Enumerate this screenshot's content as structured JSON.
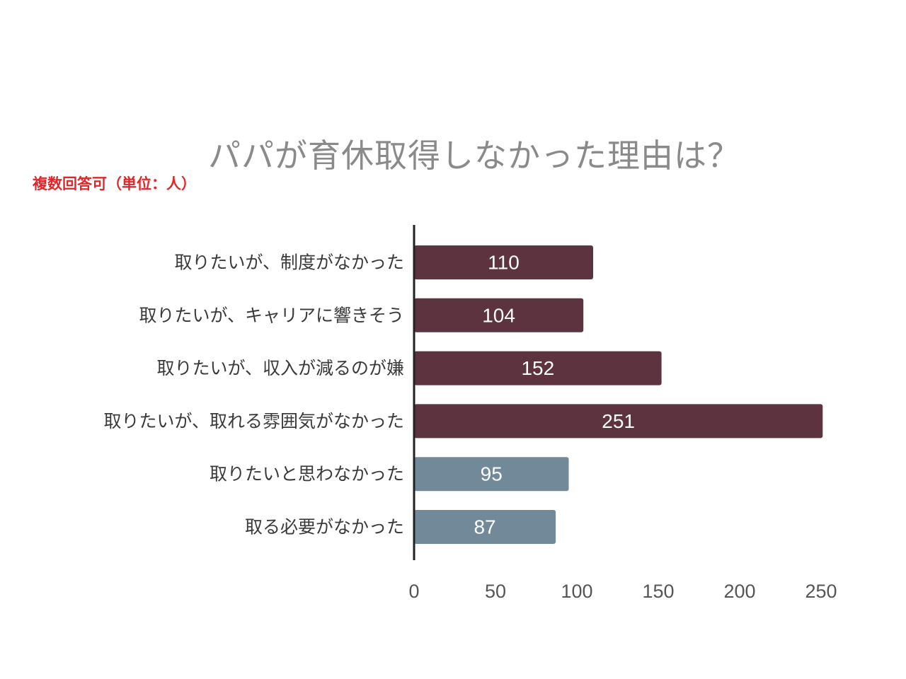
{
  "chart_data": {
    "type": "bar",
    "orientation": "horizontal",
    "title": "パパが育休取得しなかった理由は？",
    "subtitle": "複数回答可（単位：人）",
    "categories": [
      "取りたいが、制度がなかった",
      "取りたいが、キャリアに響きそう",
      "取りたいが、収入が減るのが嫌",
      "取りたいが、取れる雰囲気がなかった",
      "取りたいと思わなかった",
      "取る必要がなかった"
    ],
    "values": [
      110,
      104,
      152,
      251,
      95,
      87
    ],
    "bar_colors": [
      "#5e3340",
      "#5e3340",
      "#5e3340",
      "#5e3340",
      "#72899a",
      "#72899a"
    ],
    "xlim": [
      0,
      250
    ],
    "xticks": [
      0,
      50,
      100,
      150,
      200,
      250
    ],
    "grid": false,
    "legend": "none"
  },
  "colors": {
    "title": "#8a8a8a",
    "subtitle": "#e0272b",
    "axis": "#222222",
    "value_text": "#ffffff"
  }
}
